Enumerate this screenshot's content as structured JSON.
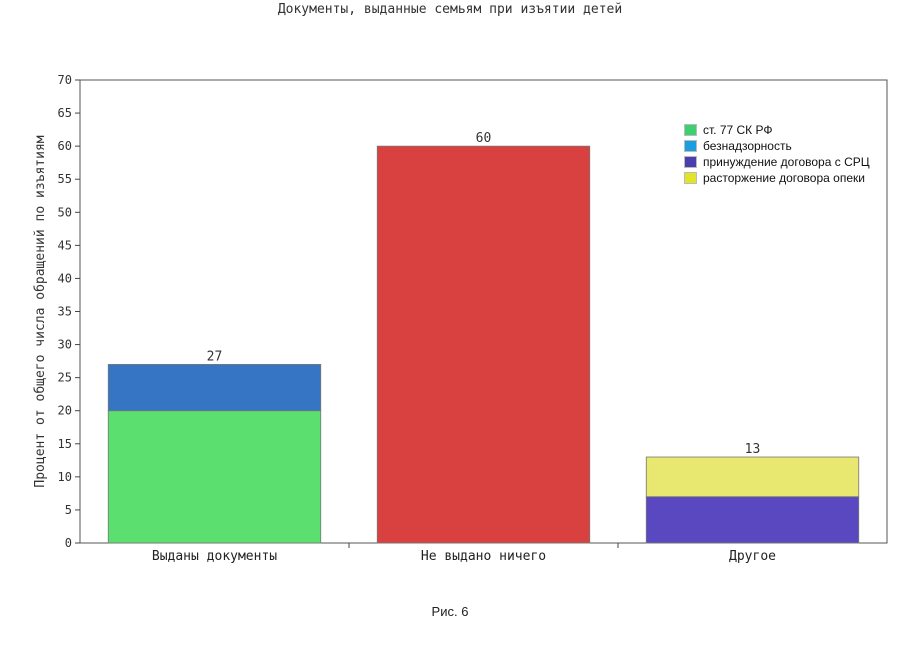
{
  "chart_data": {
    "type": "bar",
    "stacked": true,
    "title": "Документы, выданные семьям при изъятии детей",
    "ylabel": "Процент от общего числа обращений по изъятиям",
    "xlabel": "",
    "ylim": [
      0,
      70
    ],
    "ytick_step": 5,
    "yticks": [
      "0",
      "5",
      "10",
      "15",
      "20",
      "25",
      "30",
      "35",
      "40",
      "45",
      "50",
      "55",
      "60",
      "65",
      "70"
    ],
    "categories": [
      "Выданы документы",
      "Не выдано ничего",
      "Другое"
    ],
    "totals": [
      "27",
      "60",
      "13"
    ],
    "legend_position": "top-right",
    "legend": [
      {
        "label": "ст. 77 СК РФ",
        "color": "#3ecf6e"
      },
      {
        "label": "безнадзорность",
        "color": "#1a9ee0"
      },
      {
        "label": "принуждение договора с СРЦ",
        "color": "#4b3eb0"
      },
      {
        "label": "расторжение договора опеки",
        "color": "#e3e32a"
      }
    ],
    "segments": [
      [
        {
          "value": 20,
          "color": "#5be070"
        },
        {
          "value": 7,
          "color": "#3674c4"
        }
      ],
      [
        {
          "value": 60,
          "color": "#d94040"
        }
      ],
      [
        {
          "value": 7,
          "color": "#5a48c0"
        },
        {
          "value": 6,
          "color": "#e8e870"
        }
      ]
    ]
  },
  "caption": "Рис. 6"
}
